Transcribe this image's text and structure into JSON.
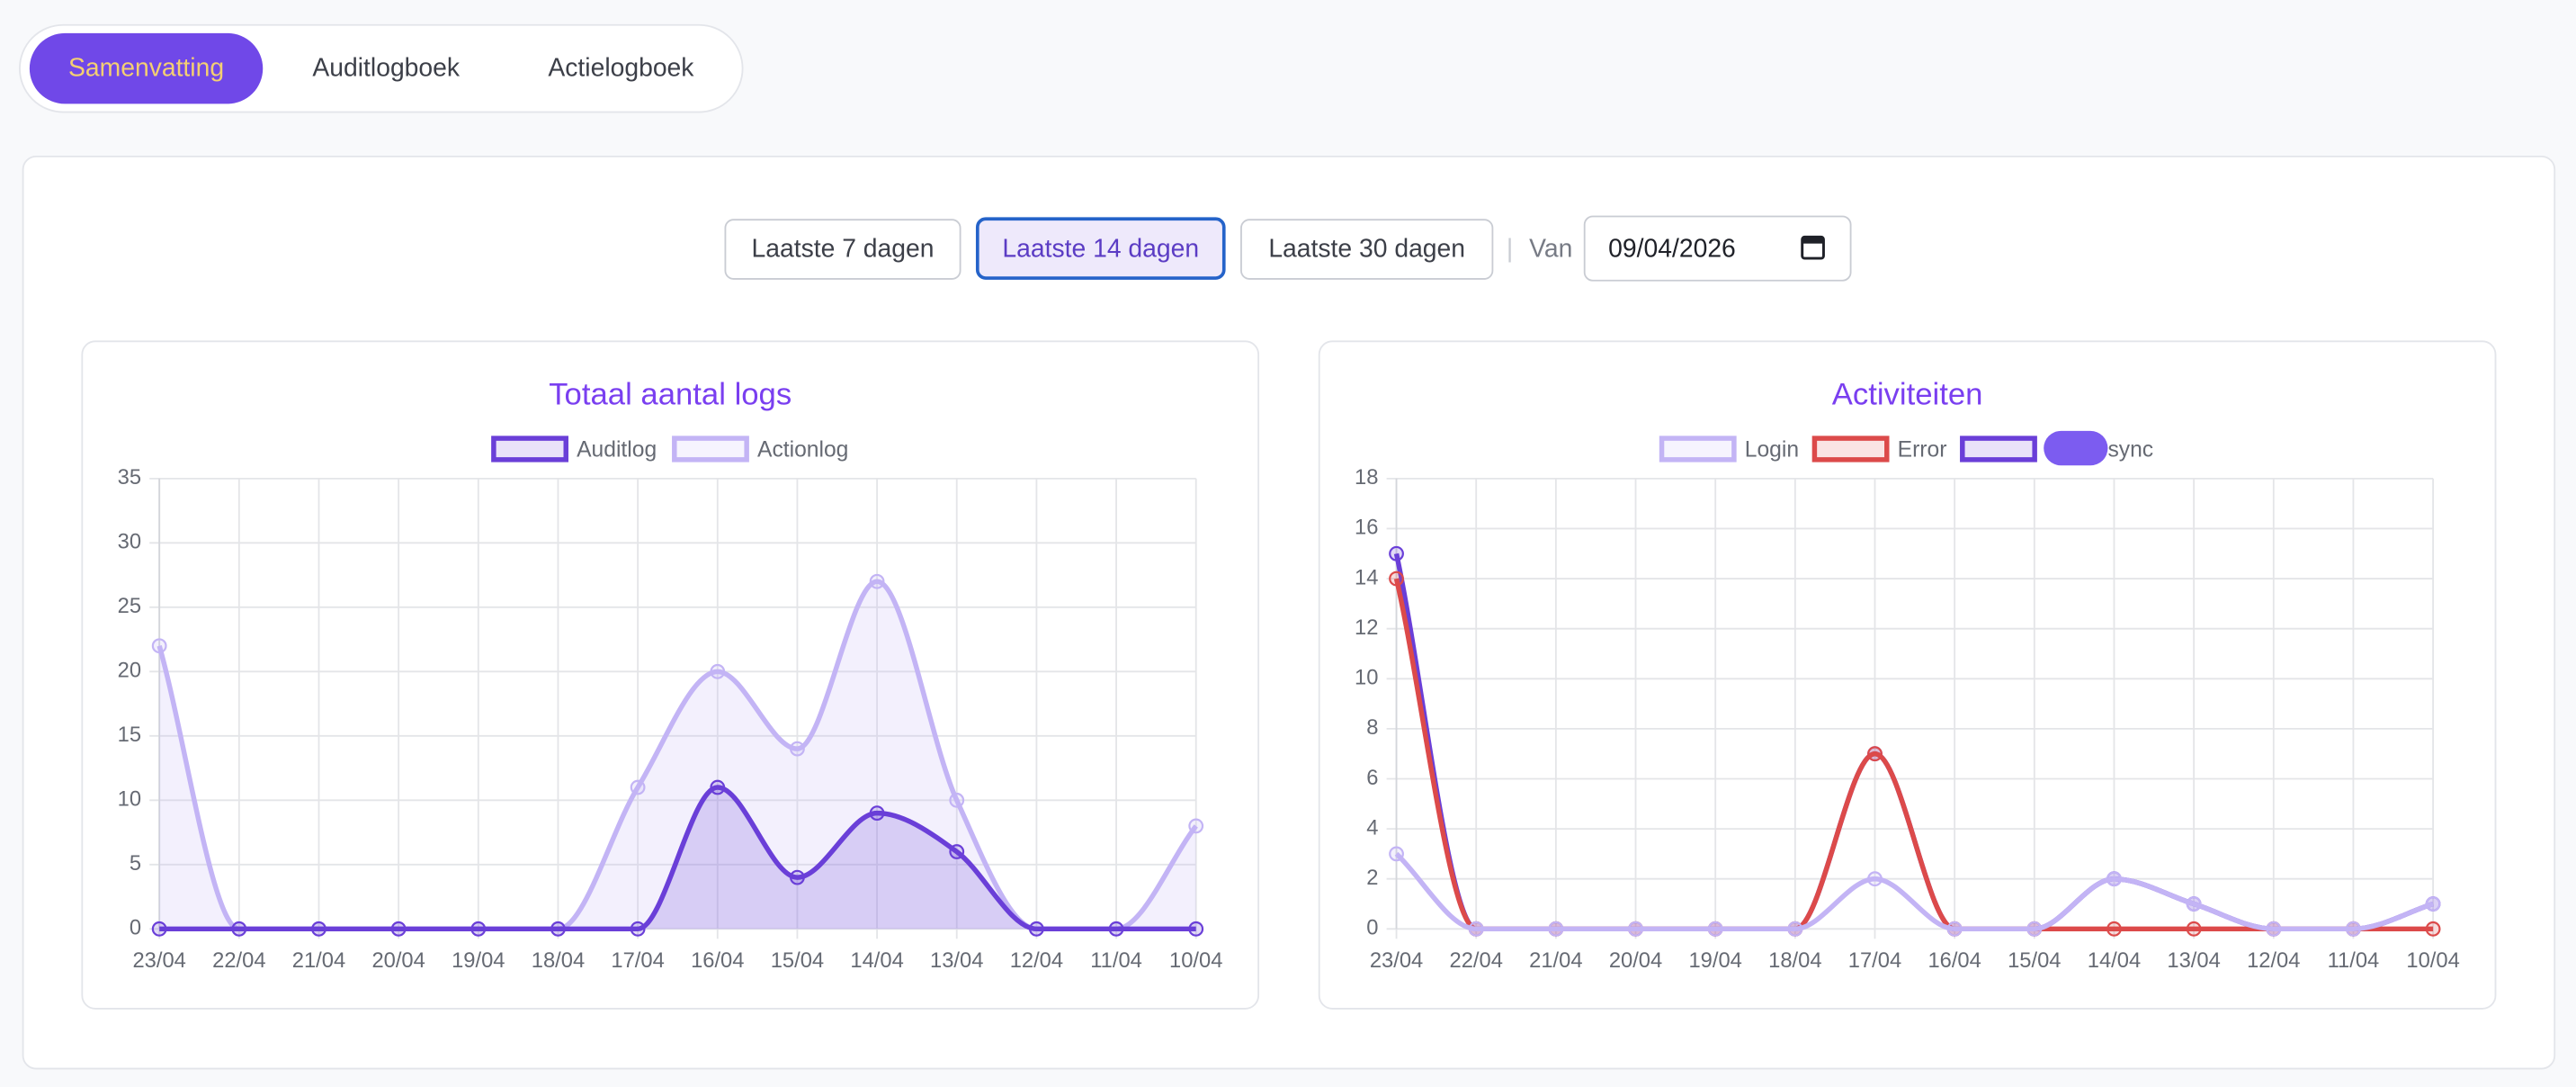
{
  "tabs": [
    "Samenvatting",
    "Auditlogboek",
    "Actielogboek"
  ],
  "filters": {
    "buttons": [
      "Laatste 7 dagen",
      "Laatste 14 dagen",
      "Laatste 30 dagen"
    ],
    "separator": "|",
    "from_label": "Van",
    "from_date": "09/04/2026"
  },
  "chart_data": [
    {
      "type": "line",
      "title": "Totaal aantal logs",
      "categories": [
        "23/04",
        "22/04",
        "21/04",
        "20/04",
        "19/04",
        "18/04",
        "17/04",
        "16/04",
        "15/04",
        "14/04",
        "13/04",
        "12/04",
        "11/04",
        "10/04"
      ],
      "series": [
        {
          "name": "Auditlog",
          "color": "#6a3fd8",
          "fill": true,
          "values": [
            0,
            0,
            0,
            0,
            0,
            0,
            0,
            11,
            4,
            9,
            6,
            0,
            0,
            0
          ]
        },
        {
          "name": "Actionlog",
          "color": "#c3b4f5",
          "fill": true,
          "values": [
            22,
            0,
            0,
            0,
            0,
            0,
            11,
            20,
            14,
            27,
            10,
            0,
            0,
            8
          ]
        }
      ],
      "ylim": [
        0,
        35
      ],
      "yticks": [
        0,
        5,
        10,
        15,
        20,
        25,
        30,
        35
      ],
      "grid": true
    },
    {
      "type": "line",
      "title": "Activiteiten",
      "categories": [
        "23/04",
        "22/04",
        "21/04",
        "20/04",
        "19/04",
        "18/04",
        "17/04",
        "16/04",
        "15/04",
        "14/04",
        "13/04",
        "12/04",
        "11/04",
        "10/04"
      ],
      "series": [
        {
          "name": "Login",
          "color": "#c3b4f5",
          "fill": false,
          "values": [
            3,
            0,
            0,
            0,
            0,
            0,
            2,
            0,
            0,
            2,
            1,
            0,
            0,
            1
          ]
        },
        {
          "name": "Error",
          "color": "#dc4a4a",
          "fill": false,
          "values": [
            14,
            0,
            0,
            0,
            0,
            0,
            7,
            0,
            0,
            0,
            0,
            0,
            0,
            0
          ]
        },
        {
          "name": "sync",
          "color": "#6a3fd8",
          "fill": false,
          "values": [
            15,
            0,
            0,
            0,
            0,
            0,
            7,
            0,
            0,
            2,
            1,
            0,
            0,
            1
          ]
        }
      ],
      "ylim": [
        0,
        18
      ],
      "yticks": [
        0,
        2,
        4,
        6,
        8,
        10,
        12,
        14,
        16,
        18
      ],
      "grid": true
    }
  ]
}
